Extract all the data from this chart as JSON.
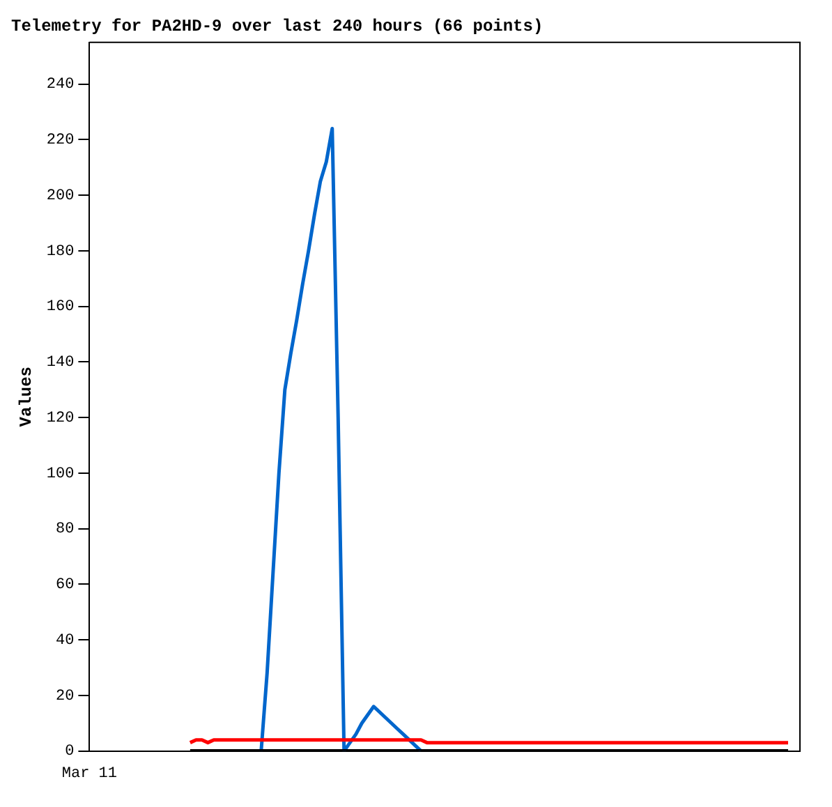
{
  "chart_data": {
    "type": "line",
    "title": "Telemetry for PA2HD-9 over last 240 hours (66 points)",
    "ylabel": "Values",
    "categories": [
      "Mar 11",
      null,
      null,
      null,
      null,
      null,
      null,
      null,
      null,
      null,
      null,
      null,
      null,
      null,
      null,
      null,
      null,
      null,
      null,
      null,
      null,
      null,
      null,
      null,
      null,
      null,
      null,
      null,
      null,
      null,
      null,
      null,
      null,
      null,
      null,
      null,
      null,
      null,
      null,
      null,
      null,
      null,
      null,
      null,
      null,
      null,
      null,
      null,
      null,
      null,
      null,
      null,
      null,
      null,
      null,
      null,
      null,
      null,
      null,
      null,
      null,
      null,
      null,
      null,
      null,
      null,
      null,
      null,
      null,
      null,
      null,
      null,
      null,
      null,
      null,
      null,
      null,
      null,
      null,
      null,
      null,
      null,
      null,
      null,
      null,
      null,
      null,
      null,
      null,
      null,
      null,
      null,
      null,
      null,
      null,
      null,
      null,
      null,
      null,
      null,
      null,
      null,
      null,
      null,
      null,
      null,
      null,
      null,
      null,
      null,
      null,
      null,
      null,
      null,
      null,
      null,
      null,
      null,
      null,
      null,
      null
    ],
    "ylim": [
      0,
      255
    ],
    "yticks": [
      0,
      20,
      40,
      60,
      80,
      100,
      120,
      140,
      160,
      180,
      200,
      220,
      240
    ],
    "marker": "none",
    "line_style": "solid",
    "legend": false,
    "grid": false,
    "series": [
      {
        "color": "#000000",
        "values": [
          null,
          null,
          null,
          null,
          null,
          null,
          null,
          null,
          null,
          null,
          null,
          null,
          null,
          null,
          null,
          null,
          null,
          0,
          0,
          0,
          0,
          0,
          0,
          0,
          0,
          0,
          0,
          0,
          0,
          0,
          0,
          0,
          0,
          0,
          0,
          0,
          0,
          0,
          0,
          0,
          0,
          0,
          0,
          0,
          0,
          0,
          0,
          0,
          0,
          0,
          0,
          0,
          0,
          0,
          0,
          0,
          0,
          0,
          0,
          0,
          0,
          0,
          0,
          0,
          0,
          0,
          0,
          0,
          0,
          0,
          0,
          0,
          0,
          0,
          0,
          0,
          0,
          0,
          0,
          0,
          0,
          0,
          0,
          0,
          0,
          0,
          0,
          0,
          0,
          0,
          0,
          0,
          0,
          0,
          0,
          0,
          0,
          0,
          0,
          0,
          0,
          0,
          0,
          0,
          0,
          0,
          0,
          0,
          0,
          0,
          0,
          0,
          0,
          0,
          0,
          0,
          0,
          0,
          0,
          null,
          null
        ]
      },
      {
        "color": "#ff0000",
        "values": [
          null,
          null,
          null,
          null,
          null,
          null,
          null,
          null,
          null,
          null,
          null,
          null,
          null,
          null,
          null,
          null,
          null,
          3,
          4,
          4,
          3,
          4,
          4,
          4,
          4,
          4,
          4,
          4,
          4,
          4,
          4,
          4,
          4,
          4,
          4,
          4,
          4,
          4,
          4,
          4,
          4,
          4,
          4,
          4,
          4,
          4,
          4,
          4,
          4,
          4,
          4,
          4,
          4,
          4,
          4,
          4,
          4,
          3,
          3,
          3,
          3,
          3,
          3,
          3,
          3,
          3,
          3,
          3,
          3,
          3,
          3,
          3,
          3,
          3,
          3,
          3,
          3,
          3,
          3,
          3,
          3,
          3,
          3,
          3,
          3,
          3,
          3,
          3,
          3,
          3,
          3,
          3,
          3,
          3,
          3,
          3,
          3,
          3,
          3,
          3,
          3,
          3,
          3,
          3,
          3,
          3,
          3,
          3,
          3,
          3,
          3,
          3,
          3,
          3,
          3,
          3,
          3,
          3,
          3,
          null,
          null
        ]
      },
      {
        "color": "#0066cc",
        "values": [
          null,
          null,
          null,
          null,
          null,
          null,
          null,
          null,
          null,
          null,
          null,
          null,
          null,
          null,
          null,
          null,
          null,
          null,
          null,
          null,
          null,
          null,
          null,
          null,
          null,
          null,
          null,
          null,
          null,
          0,
          28,
          64,
          100,
          130,
          143,
          155,
          168,
          180,
          193,
          205,
          212,
          224,
          120,
          0,
          3,
          6,
          10,
          13,
          16,
          14,
          12,
          10,
          8,
          6,
          4,
          2,
          0,
          null,
          null,
          null,
          null,
          null,
          null,
          null,
          null,
          null,
          null,
          null,
          null,
          null,
          null,
          null,
          null,
          null,
          null,
          null,
          null,
          null,
          null,
          null,
          null,
          null,
          null,
          null,
          null,
          null,
          null,
          null,
          null,
          null,
          null,
          null,
          null,
          null,
          null,
          null,
          null,
          null,
          null,
          null,
          null,
          null,
          null,
          null,
          null,
          null,
          null,
          null,
          null,
          null,
          null,
          null,
          null,
          null,
          null,
          null,
          null,
          null,
          null,
          null,
          null
        ]
      }
    ]
  }
}
